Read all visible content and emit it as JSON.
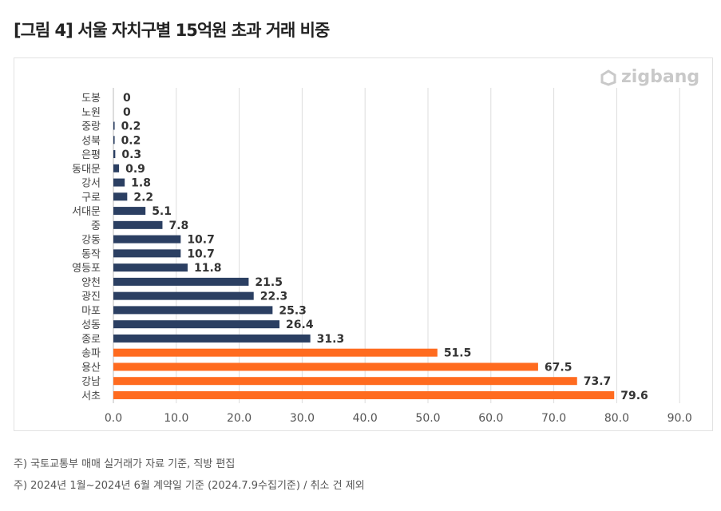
{
  "title": "[그림 4] 서울 자치구별 15억원 초과 거래 비중",
  "logo": "zigbang",
  "notes": [
    "주) 국토교통부 매매 실거래가 자료 기준, 직방 편집",
    "주) 2024년 1월~2024년 6월 계약일 기준 (2024.7.9수집기준) / 취소 건 제외"
  ],
  "colors": {
    "base": "#2b3f62",
    "highlight": "#ff6b1f"
  },
  "chart_data": {
    "type": "bar",
    "orientation": "horizontal",
    "categories": [
      "도봉",
      "노원",
      "중랑",
      "성북",
      "은평",
      "동대문",
      "강서",
      "구로",
      "서대문",
      "중",
      "강동",
      "동작",
      "영등포",
      "양천",
      "광진",
      "마포",
      "성동",
      "종로",
      "송파",
      "용산",
      "강남",
      "서초"
    ],
    "values": [
      0,
      0,
      0.2,
      0.2,
      0.3,
      0.9,
      1.8,
      2.2,
      5.1,
      7.8,
      10.7,
      10.7,
      11.8,
      21.5,
      22.3,
      25.3,
      26.4,
      31.3,
      51.5,
      67.5,
      73.7,
      79.6
    ],
    "highlighted": [
      "송파",
      "용산",
      "강남",
      "서초"
    ],
    "xlim": [
      0,
      90
    ],
    "xticks": [
      "0.0",
      "10.0",
      "20.0",
      "30.0",
      "40.0",
      "50.0",
      "60.0",
      "70.0",
      "80.0",
      "90.0"
    ],
    "grid": "vertical",
    "xlabel": "",
    "ylabel": ""
  }
}
